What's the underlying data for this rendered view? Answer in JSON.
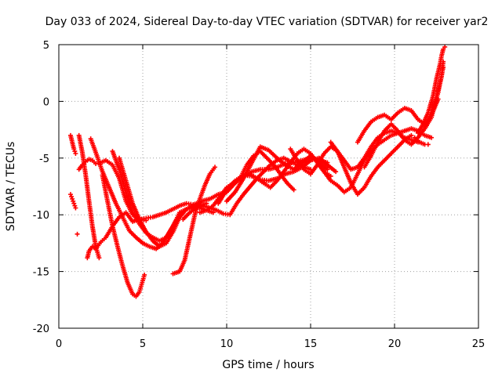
{
  "chart_data": {
    "type": "scatter",
    "title": "Day 033 of 2024, Sidereal Day-to-day VTEC variation (SDTVAR) for receiver yar2",
    "xlabel": "GPS time / hours",
    "ylabel": "SDTVAR / TECUs",
    "xlim": [
      0,
      25
    ],
    "ylim": [
      -20,
      5
    ],
    "xticks": [
      0,
      5,
      10,
      15,
      20,
      25
    ],
    "yticks": [
      -20,
      -15,
      -10,
      -5,
      0,
      5
    ],
    "grid": true,
    "legend": "none",
    "marker": "plus",
    "color": "#ff0000",
    "series": [
      {
        "x": [
          0.7,
          0.8,
          0.9,
          1.0
        ],
        "y": [
          -3.0,
          -3.6,
          -4.2,
          -4.6
        ]
      },
      {
        "x": [
          0.7,
          0.8,
          0.9,
          1.0
        ],
        "y": [
          -8.2,
          -8.6,
          -9.0,
          -9.4
        ]
      },
      {
        "x": [
          1.2,
          1.4,
          1.6,
          1.8,
          2.0,
          2.2,
          2.5,
          2.8,
          3.2,
          3.6,
          4.0,
          4.4,
          4.8,
          5.2
        ],
        "y": [
          -6.0,
          -5.6,
          -5.3,
          -5.1,
          -5.2,
          -5.5,
          -5.4,
          -5.2,
          -5.6,
          -6.8,
          -8.8,
          -10.0,
          -10.4,
          -10.5
        ]
      },
      {
        "x": [
          1.2,
          1.4,
          1.6,
          1.8,
          2.0,
          2.2,
          2.4
        ],
        "y": [
          -3.0,
          -4.5,
          -6.5,
          -8.8,
          -11.0,
          -12.8,
          -13.8
        ]
      },
      {
        "x": [
          1.1
        ],
        "y": [
          -11.7
        ]
      },
      {
        "x": [
          1.7,
          1.8,
          2.0,
          2.2,
          2.5,
          2.8,
          3.2,
          3.6,
          4.0,
          4.4,
          4.8,
          5.2,
          5.6,
          6.0,
          6.4,
          6.8,
          7.2,
          7.6,
          8.0,
          8.4
        ],
        "y": [
          -13.8,
          -13.2,
          -12.8,
          -13.0,
          -12.4,
          -12.0,
          -11.0,
          -10.2,
          -9.8,
          -10.6,
          -10.4,
          -10.3,
          -10.2,
          -10.0,
          -9.8,
          -9.5,
          -9.2,
          -9.0,
          -9.1,
          -8.9
        ]
      },
      {
        "x": [
          1.9,
          2.2,
          2.6,
          3.0,
          3.4,
          3.8,
          4.2,
          4.6,
          5.0,
          5.4,
          5.8,
          6.2,
          6.6,
          7.0,
          7.4
        ],
        "y": [
          -3.3,
          -4.5,
          -6.2,
          -7.6,
          -9.0,
          -10.2,
          -11.4,
          -12.0,
          -12.5,
          -12.8,
          -13.0,
          -12.5,
          -11.5,
          -10.5,
          -9.8
        ]
      },
      {
        "x": [
          2.6,
          2.9,
          3.2,
          3.5,
          3.8,
          4.1,
          4.4,
          4.6,
          4.8,
          5.0,
          5.1
        ],
        "y": [
          -6.5,
          -8.8,
          -11.0,
          -12.8,
          -14.5,
          -16.0,
          -17.0,
          -17.2,
          -16.8,
          -15.8,
          -15.3
        ]
      },
      {
        "x": [
          3.2,
          3.6,
          4.0,
          4.4,
          4.8,
          5.2,
          5.6,
          6.0,
          6.4,
          6.8,
          7.2,
          7.6,
          8.0,
          8.4,
          8.8
        ],
        "y": [
          -4.4,
          -6.0,
          -8.0,
          -9.8,
          -10.8,
          -11.6,
          -12.0,
          -12.3,
          -12.0,
          -11.0,
          -9.8,
          -9.5,
          -9.3,
          -9.2,
          -9.0
        ]
      },
      {
        "x": [
          3.6,
          4.0,
          4.4,
          4.8,
          5.2,
          5.6,
          6.0,
          6.4,
          6.8,
          7.2,
          7.6,
          8.0,
          8.4,
          8.8,
          9.2
        ],
        "y": [
          -5.0,
          -7.0,
          -9.0,
          -10.4,
          -11.5,
          -12.3,
          -12.8,
          -12.5,
          -11.5,
          -10.2,
          -9.5,
          -9.2,
          -9.4,
          -9.6,
          -9.8
        ]
      },
      {
        "x": [
          6.8,
          7.2,
          7.5,
          7.8,
          8.1,
          8.4,
          8.7,
          9.0,
          9.3
        ],
        "y": [
          -15.2,
          -15.0,
          -14.0,
          -12.0,
          -10.0,
          -8.6,
          -7.4,
          -6.4,
          -5.8
        ]
      },
      {
        "x": [
          7.4,
          7.8,
          8.2,
          8.6,
          9.0,
          9.4,
          9.8,
          10.2,
          10.6,
          11.0,
          11.4,
          11.8,
          12.2,
          12.6,
          13.0,
          13.4,
          13.8,
          14.2,
          14.6,
          15.0
        ],
        "y": [
          -10.4,
          -9.8,
          -9.4,
          -9.2,
          -9.4,
          -9.6,
          -9.9,
          -10.0,
          -9.0,
          -8.2,
          -7.5,
          -6.8,
          -6.2,
          -5.6,
          -5.2,
          -5.0,
          -5.3,
          -5.6,
          -5.8,
          -6.0
        ]
      },
      {
        "x": [
          8.0,
          8.5,
          9.0,
          9.5,
          10.0,
          10.5,
          11.0,
          11.5,
          12.0,
          12.5,
          13.0,
          13.5,
          14.0,
          14.5,
          15.0,
          15.5,
          16.0
        ],
        "y": [
          -9.5,
          -8.8,
          -8.6,
          -8.2,
          -8.0,
          -7.2,
          -6.6,
          -6.2,
          -6.0,
          -6.0,
          -5.8,
          -5.5,
          -5.4,
          -5.2,
          -5.0,
          -5.2,
          -5.4
        ]
      },
      {
        "x": [
          8.4,
          8.8,
          9.2,
          9.6,
          10.0,
          10.4,
          10.8,
          11.2,
          11.6,
          12.0,
          12.4,
          12.8,
          13.2,
          13.6,
          14.0
        ],
        "y": [
          -9.8,
          -9.6,
          -9.2,
          -8.4,
          -7.6,
          -7.2,
          -6.8,
          -5.6,
          -4.8,
          -4.4,
          -5.0,
          -5.6,
          -6.4,
          -7.2,
          -7.8
        ]
      },
      {
        "x": [
          9.5,
          10.0,
          10.5,
          11.0,
          11.5,
          12.0,
          12.5,
          13.0,
          13.5,
          14.0,
          14.5,
          15.0,
          15.5,
          16.0,
          16.5
        ],
        "y": [
          -9.0,
          -7.8,
          -7.0,
          -6.5,
          -6.6,
          -6.9,
          -7.0,
          -6.8,
          -6.4,
          -6.2,
          -5.8,
          -5.2,
          -5.0,
          -5.6,
          -6.2
        ]
      },
      {
        "x": [
          10.0,
          10.5,
          11.0,
          11.5,
          12.0,
          12.5,
          13.0,
          13.5,
          14.0,
          14.5,
          15.0,
          15.5,
          16.0
        ],
        "y": [
          -8.8,
          -8.0,
          -6.8,
          -5.4,
          -4.0,
          -4.3,
          -5.0,
          -5.6,
          -6.0,
          -5.4,
          -4.8,
          -5.4,
          -6.0
        ]
      },
      {
        "x": [
          11.4,
          11.8,
          12.2,
          12.6,
          13.0,
          13.4,
          13.8,
          14.2,
          14.6,
          15.0,
          15.4,
          15.8,
          16.2
        ],
        "y": [
          -6.4,
          -6.8,
          -7.2,
          -7.6,
          -7.0,
          -6.2,
          -5.4,
          -4.6,
          -4.2,
          -4.6,
          -5.4,
          -6.2,
          -6.6
        ]
      },
      {
        "x": [
          13.8,
          14.2,
          14.6,
          15.0,
          15.4,
          15.8,
          16.2,
          16.6,
          17.0,
          17.4,
          17.8,
          18.2,
          18.6,
          19.0,
          19.4,
          19.8,
          20.2,
          20.6,
          21.0,
          21.4
        ],
        "y": [
          -4.2,
          -5.2,
          -6.0,
          -6.4,
          -5.6,
          -4.6,
          -4.0,
          -4.4,
          -5.2,
          -6.0,
          -5.8,
          -5.0,
          -4.0,
          -3.2,
          -2.8,
          -2.6,
          -2.8,
          -3.2,
          -3.4,
          -3.6
        ]
      },
      {
        "x": [
          15.4,
          15.8,
          16.2,
          16.6,
          17.0,
          17.4,
          17.8,
          18.2,
          18.6,
          19.0,
          19.4,
          19.8,
          20.2,
          20.6,
          21.0,
          21.4,
          21.8,
          22.2
        ],
        "y": [
          -5.4,
          -6.2,
          -7.0,
          -7.4,
          -8.0,
          -7.6,
          -6.4,
          -5.2,
          -4.4,
          -3.8,
          -3.4,
          -3.0,
          -2.8,
          -2.6,
          -2.4,
          -2.6,
          -3.0,
          -3.2
        ]
      },
      {
        "x": [
          16.2,
          16.6,
          17.0,
          17.4,
          17.8,
          18.2,
          18.6,
          19.0,
          19.4,
          19.8,
          20.2,
          20.6,
          21.0
        ],
        "y": [
          -3.6,
          -4.4,
          -5.8,
          -7.2,
          -8.2,
          -7.6,
          -6.6,
          -5.8,
          -5.2,
          -4.6,
          -4.0,
          -3.4,
          -3.0
        ]
      },
      {
        "x": [
          17.8,
          18.2,
          18.6,
          19.0,
          19.4,
          19.8,
          20.2,
          20.6,
          21.0,
          21.4,
          21.8,
          22.2,
          22.6
        ],
        "y": [
          -3.6,
          -2.6,
          -1.8,
          -1.4,
          -1.2,
          -1.6,
          -1.0,
          -0.6,
          -0.8,
          -1.6,
          -2.0,
          -1.2,
          0.2
        ]
      },
      {
        "x": [
          18.2,
          18.6,
          19.0,
          19.4,
          19.8,
          20.2,
          20.6,
          21.0,
          21.4,
          21.8,
          22.2,
          22.6,
          22.9
        ],
        "y": [
          -5.8,
          -4.8,
          -3.6,
          -2.6,
          -2.0,
          -2.6,
          -3.4,
          -3.8,
          -3.2,
          -2.4,
          -1.4,
          0.8,
          3.0
        ]
      },
      {
        "x": [
          21.4,
          21.7,
          22.0,
          22.3,
          22.5,
          22.7,
          22.8,
          22.9,
          23.0
        ],
        "y": [
          -2.8,
          -2.0,
          -1.0,
          0.5,
          2.0,
          3.2,
          4.0,
          4.6,
          4.8
        ]
      },
      {
        "x": [
          21.8,
          22.0,
          22.2,
          22.4,
          22.6,
          22.8,
          22.9
        ],
        "y": [
          -2.4,
          -1.8,
          -1.0,
          0.0,
          1.0,
          2.2,
          3.5
        ]
      },
      {
        "x": [
          21.2,
          21.5,
          21.8,
          22.0
        ],
        "y": [
          -3.2,
          -3.6,
          -3.8,
          -3.8
        ]
      }
    ]
  }
}
